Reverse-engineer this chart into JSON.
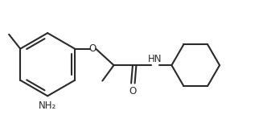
{
  "bg_color": "#ffffff",
  "line_color": "#2a2a2a",
  "line_width": 1.5,
  "font_size": 8.5,
  "label_nh2": "NH₂",
  "label_o": "O",
  "label_hn": "HN",
  "label_o2": "O"
}
